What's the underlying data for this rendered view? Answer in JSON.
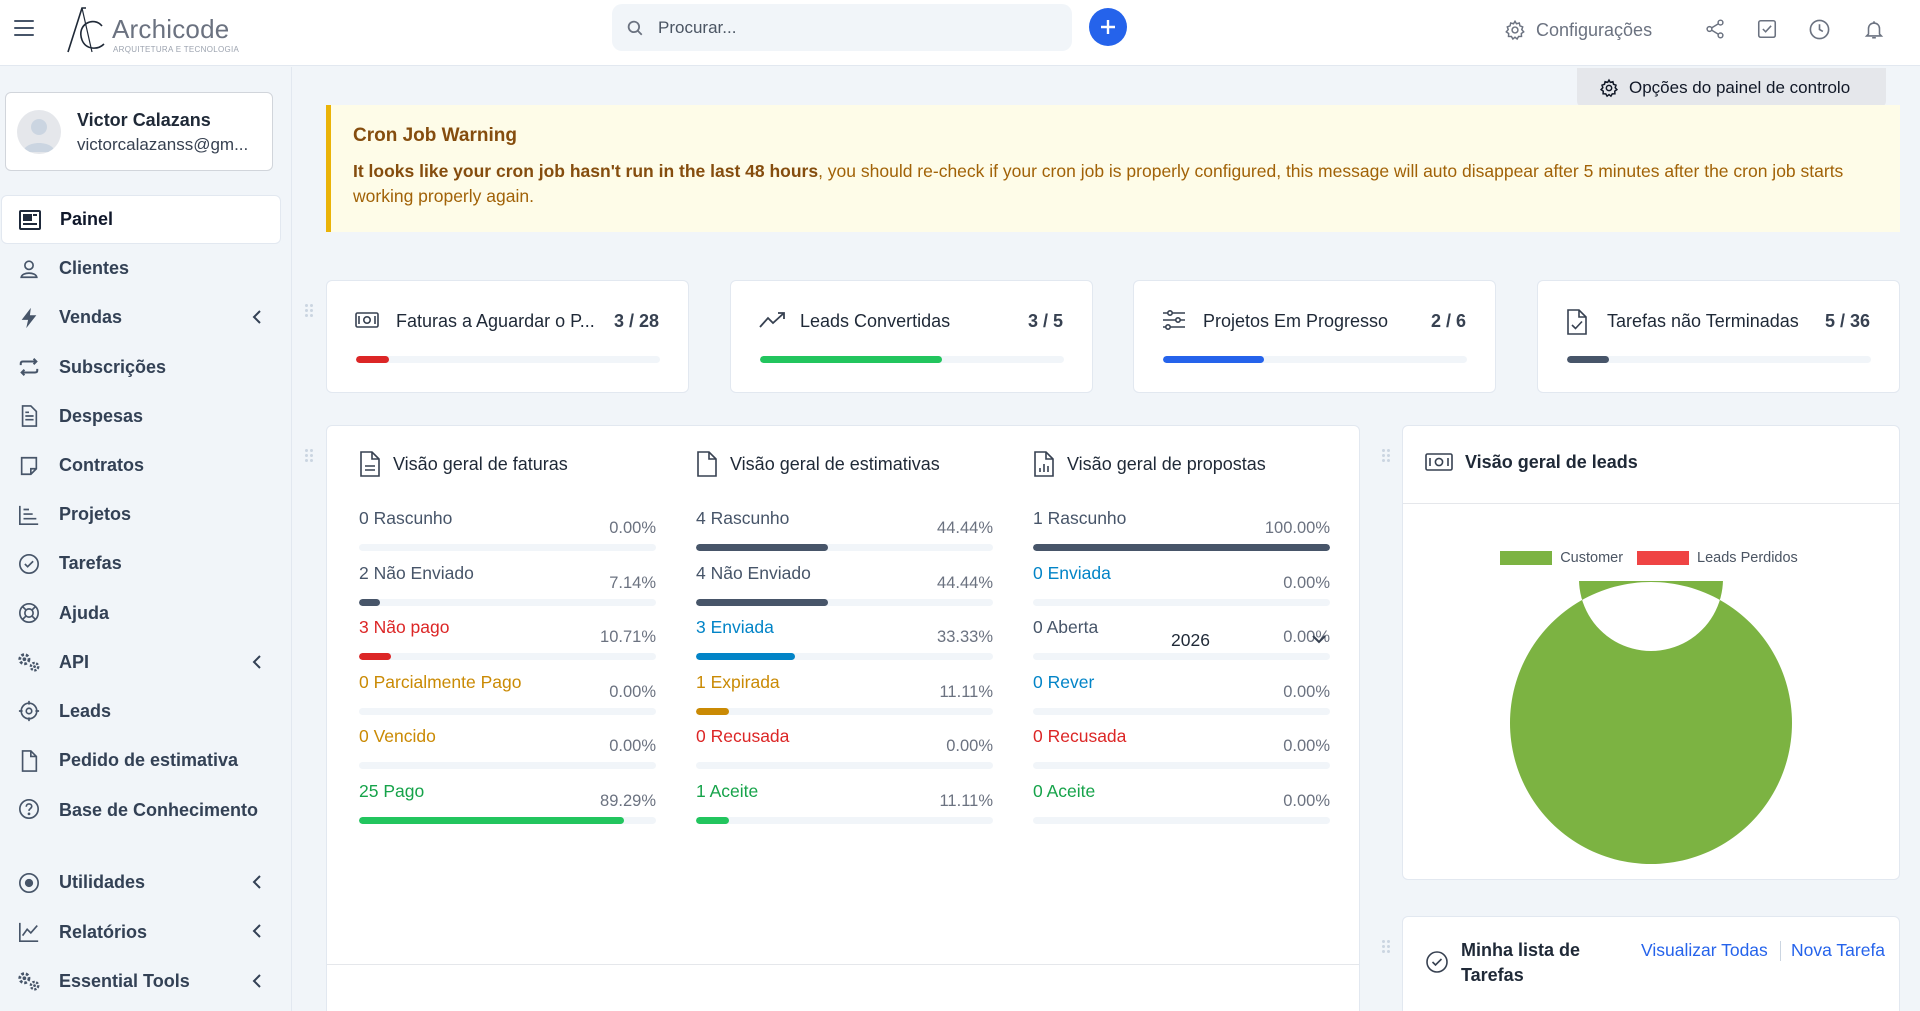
{
  "app": {
    "logo_name": "Archicode",
    "logo_sub": "ARQUITETURA E TECNOLOGIA"
  },
  "topbar": {
    "search_placeholder": "Procurar...",
    "settings_label": "Configurações"
  },
  "user": {
    "name": "Victor Calazans",
    "email": "victorcalazanss@gm..."
  },
  "sidebar": {
    "items": [
      {
        "label": "Painel",
        "icon": "dashboard-icon",
        "active": true
      },
      {
        "label": "Clientes",
        "icon": "user-icon"
      },
      {
        "label": "Vendas",
        "icon": "bolt-icon",
        "has_submenu": true
      },
      {
        "label": "Subscrições",
        "icon": "repeat-icon"
      },
      {
        "label": "Despesas",
        "icon": "file-text-icon"
      },
      {
        "label": "Contratos",
        "icon": "contract-icon"
      },
      {
        "label": "Projetos",
        "icon": "chart-bars-icon"
      },
      {
        "label": "Tarefas",
        "icon": "check-circle-icon"
      },
      {
        "label": "Ajuda",
        "icon": "lifebuoy-icon"
      },
      {
        "label": "API",
        "icon": "cogs-icon",
        "has_submenu": true
      },
      {
        "label": "Leads",
        "icon": "crosshair-icon"
      },
      {
        "label": "Pedido de estimativa",
        "icon": "file-icon"
      },
      {
        "label": "Base de Conhecimento",
        "icon": "question-circle-icon"
      },
      {
        "label": "Utilidades",
        "icon": "dot-circle-icon",
        "has_submenu": true
      },
      {
        "label": "Relatórios",
        "icon": "line-chart-icon",
        "has_submenu": true
      },
      {
        "label": "Essential Tools",
        "icon": "cogs-icon",
        "has_submenu": true
      }
    ]
  },
  "dashboard": {
    "options_label": "Opções do painel de controlo",
    "warning": {
      "title": "Cron Job Warning",
      "bold_text": "It looks like your cron job hasn't run in the last 48 hours",
      "text": ", you should re-check if your cron job is properly configured, this message will auto disappear after 5 minutes after the cron job starts working properly again."
    },
    "stats": [
      {
        "label": "Faturas a Aguardar o P...",
        "value": "3 / 28",
        "progress": 0.107,
        "color": "#dc2626",
        "icon": "money-icon"
      },
      {
        "label": "Leads Convertidas",
        "value": "3 / 5",
        "progress": 0.6,
        "color": "#22c55e",
        "icon": "trending-up-icon"
      },
      {
        "label": "Projetos Em Progresso",
        "value": "2 / 6",
        "progress": 0.333,
        "color": "#2563eb",
        "icon": "sliders-icon"
      },
      {
        "label": "Tarefas não Terminadas",
        "value": "5 / 36",
        "progress": 0.139,
        "color": "#475569",
        "icon": "file-check-icon"
      }
    ],
    "invoices_overview": {
      "title": "Visão geral de faturas",
      "rows": [
        {
          "label": "0 Rascunho",
          "percent": "0.00%",
          "value": 0,
          "color": "#475569",
          "bar": "#475569"
        },
        {
          "label": "2 Não Enviado",
          "percent": "7.14%",
          "value": 7.14,
          "color": "#475569",
          "bar": "#475569"
        },
        {
          "label": "3 Não pago",
          "percent": "10.71%",
          "value": 10.71,
          "color": "#dc2626",
          "bar": "#dc2626"
        },
        {
          "label": "0 Parcialmente Pago",
          "percent": "0.00%",
          "value": 0,
          "color": "#ca8a04",
          "bar": "#ca8a04"
        },
        {
          "label": "0 Vencido",
          "percent": "0.00%",
          "value": 0,
          "color": "#ca8a04",
          "bar": "#ca8a04"
        },
        {
          "label": "25 Pago",
          "percent": "89.29%",
          "value": 89.29,
          "color": "#16a34a",
          "bar": "#22c55e"
        }
      ]
    },
    "estimates_overview": {
      "title": "Visão geral de estimativas",
      "rows": [
        {
          "label": "4 Rascunho",
          "percent": "44.44%",
          "value": 44.44,
          "color": "#475569",
          "bar": "#475569"
        },
        {
          "label": "4 Não Enviado",
          "percent": "44.44%",
          "value": 44.44,
          "color": "#475569",
          "bar": "#475569"
        },
        {
          "label": "3 Enviada",
          "percent": "33.33%",
          "value": 33.33,
          "color": "#0284c7",
          "bar": "#0284c7"
        },
        {
          "label": "1 Expirada",
          "percent": "11.11%",
          "value": 11.11,
          "color": "#ca8a04",
          "bar": "#ca8a04"
        },
        {
          "label": "0 Recusada",
          "percent": "0.00%",
          "value": 0,
          "color": "#dc2626",
          "bar": "#dc2626"
        },
        {
          "label": "1 Aceite",
          "percent": "11.11%",
          "value": 11.11,
          "color": "#16a34a",
          "bar": "#22c55e"
        }
      ]
    },
    "proposals_overview": {
      "title": "Visão geral de propostas",
      "rows": [
        {
          "label": "1 Rascunho",
          "percent": "100.00%",
          "value": 100,
          "color": "#475569",
          "bar": "#475569"
        },
        {
          "label": "0 Enviada",
          "percent": "0.00%",
          "value": 0,
          "color": "#0284c7",
          "bar": "#0284c7"
        },
        {
          "label": "0 Aberta",
          "percent": "0.00%",
          "value": 0,
          "color": "#475569",
          "bar": "#475569"
        },
        {
          "label": "0 Rever",
          "percent": "0.00%",
          "value": 0,
          "color": "#0284c7",
          "bar": "#0284c7"
        },
        {
          "label": "0 Recusada",
          "percent": "0.00%",
          "value": 0,
          "color": "#dc2626",
          "bar": "#dc2626"
        },
        {
          "label": "0 Aceite",
          "percent": "0.00%",
          "value": 0,
          "color": "#16a34a",
          "bar": "#22c55e"
        }
      ]
    },
    "year": "2026",
    "leads_overview": {
      "title": "Visão geral de leads",
      "legend": [
        {
          "name": "Customer",
          "color": "#7cb342"
        },
        {
          "name": "Leads Perdidos",
          "color": "#ef4444"
        }
      ]
    },
    "tasks": {
      "title": "Minha lista de Tarefas",
      "view_all": "Visualizar Todas",
      "new_task": "Nova Tarefa"
    }
  },
  "chart_data": {
    "type": "pie",
    "title": "",
    "categories": [
      "Customer",
      "Leads Perdidos"
    ],
    "values": [
      1,
      0
    ],
    "colors": [
      "#7cb342",
      "#ef4444"
    ],
    "legend_placement": "top"
  }
}
